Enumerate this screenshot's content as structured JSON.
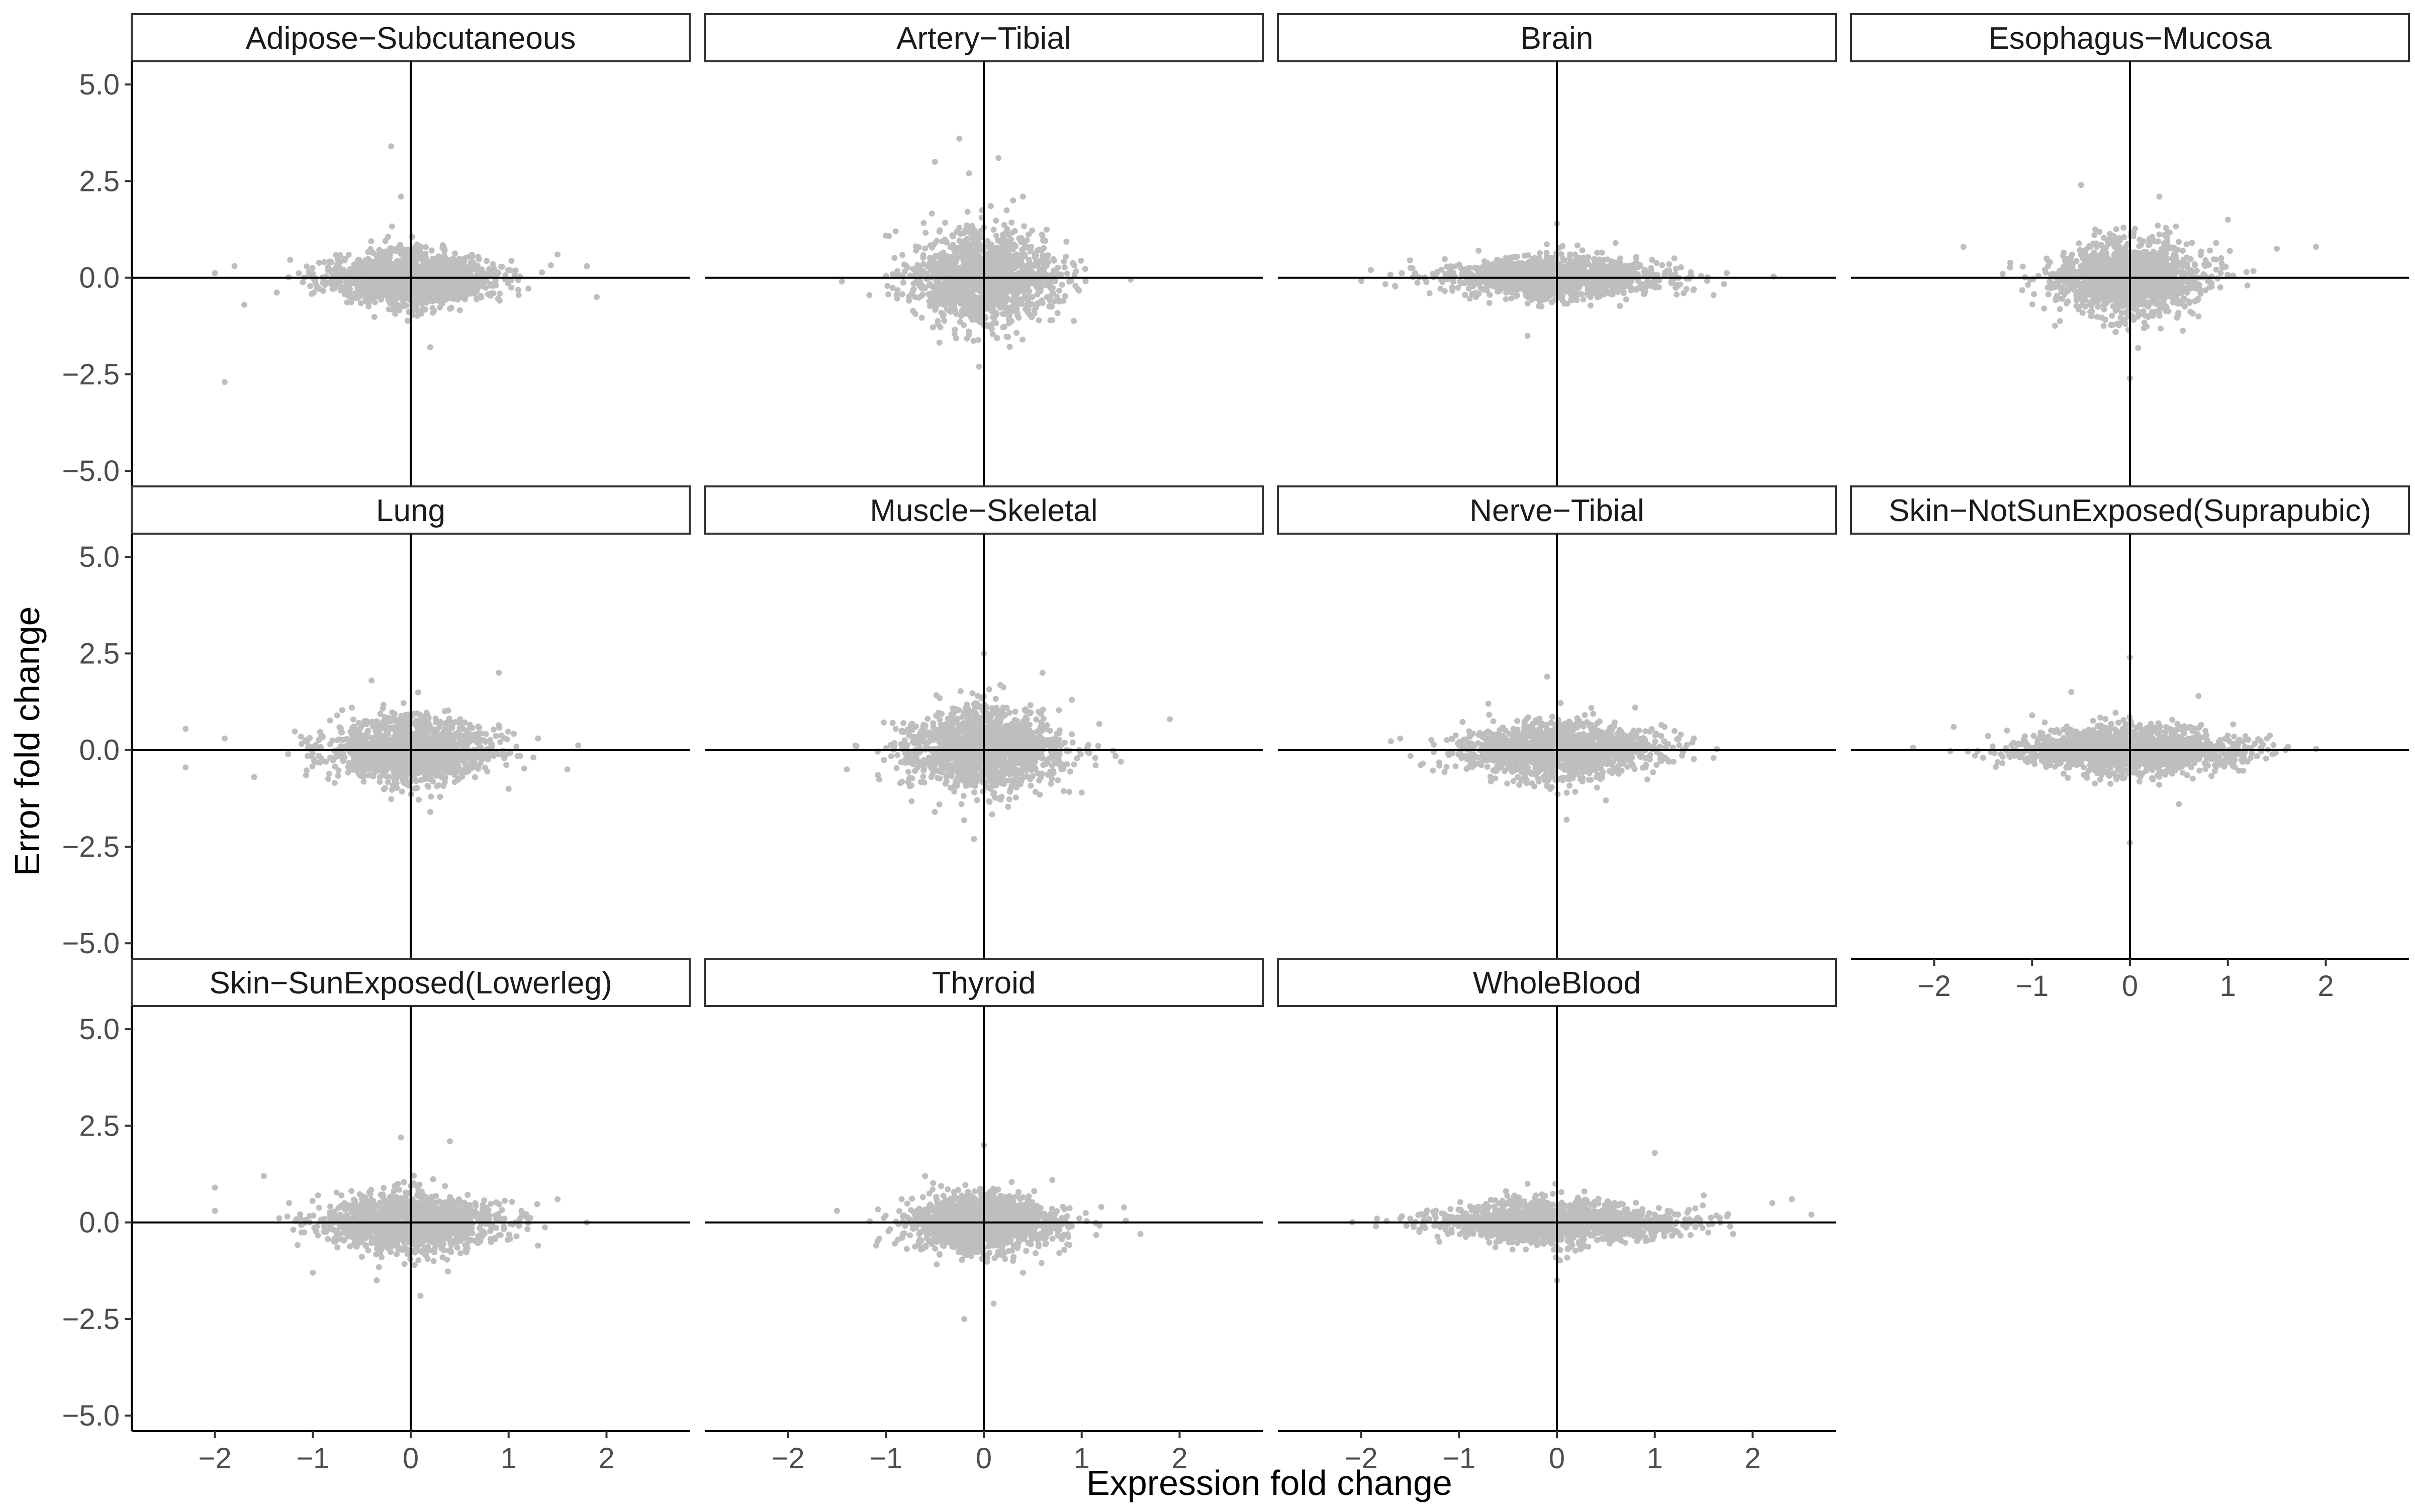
{
  "chart_data": {
    "type": "scatter",
    "xlabel": "Expression fold change",
    "ylabel": "Error fold change",
    "xlim": [
      -2.85,
      2.85
    ],
    "ylim": [
      -5.4,
      5.6
    ],
    "x_ticks": [
      -2,
      -1,
      0,
      1,
      2
    ],
    "y_ticks": [
      -5.0,
      -2.5,
      0.0,
      2.5,
      5.0
    ],
    "x_tick_labels": [
      "−2",
      "−1",
      "0",
      "1",
      "2"
    ],
    "y_tick_labels": [
      "−5.0",
      "−2.5",
      "0.0",
      "2.5",
      "5.0"
    ],
    "reference_lines": {
      "x": 0,
      "y": 0
    },
    "point_color": "#bebebe",
    "line_color": "#000000",
    "grid": false,
    "panels": [
      {
        "name": "Adipose−Subcutaneous",
        "x_spread": 0.42,
        "y_spread": 0.38,
        "points": [
          [
            -2.0,
            0.12
          ],
          [
            -1.8,
            0.3
          ],
          [
            -1.7,
            -0.7
          ],
          [
            -1.9,
            -2.7
          ],
          [
            -0.2,
            3.4
          ],
          [
            1.8,
            0.3
          ],
          [
            1.9,
            -0.5
          ],
          [
            1.5,
            0.6
          ],
          [
            -0.1,
            2.1
          ],
          [
            0.2,
            -1.8
          ]
        ]
      },
      {
        "name": "Artery−Tibial",
        "x_spread": 0.36,
        "y_spread": 0.62,
        "points": [
          [
            -0.25,
            3.6
          ],
          [
            -0.5,
            3.0
          ],
          [
            0.15,
            3.1
          ],
          [
            -0.15,
            2.7
          ],
          [
            -1.45,
            -0.1
          ],
          [
            1.5,
            -0.05
          ],
          [
            -0.05,
            -2.3
          ],
          [
            0.7,
            -1.1
          ],
          [
            -0.9,
            1.2
          ],
          [
            0.4,
            2.1
          ]
        ]
      },
      {
        "name": "Brain",
        "x_spread": 0.55,
        "y_spread": 0.3,
        "points": [
          [
            -1.9,
            0.2
          ],
          [
            -1.5,
            0.45
          ],
          [
            1.4,
            -0.3
          ],
          [
            1.6,
            -0.45
          ],
          [
            0.0,
            1.4
          ],
          [
            -0.3,
            -1.5
          ],
          [
            1.2,
            0.5
          ],
          [
            -1.3,
            -0.4
          ],
          [
            0.6,
            0.9
          ],
          [
            -0.8,
            0.7
          ]
        ]
      },
      {
        "name": "Esophagus−Mucosa",
        "x_spread": 0.38,
        "y_spread": 0.52,
        "points": [
          [
            -1.7,
            0.8
          ],
          [
            1.5,
            0.75
          ],
          [
            1.9,
            0.8
          ],
          [
            0.0,
            -2.6
          ],
          [
            -0.5,
            2.4
          ],
          [
            0.3,
            2.1
          ],
          [
            1.0,
            1.5
          ],
          [
            -1.3,
            0.1
          ],
          [
            0.7,
            -1.0
          ],
          [
            1.2,
            -0.2
          ]
        ]
      },
      {
        "name": "Lung",
        "x_spread": 0.42,
        "y_spread": 0.45,
        "points": [
          [
            -2.3,
            0.55
          ],
          [
            -2.3,
            -0.45
          ],
          [
            1.6,
            -0.5
          ],
          [
            0.9,
            2.0
          ],
          [
            -0.4,
            1.8
          ],
          [
            1.3,
            0.3
          ],
          [
            -1.6,
            -0.7
          ],
          [
            0.2,
            -1.6
          ],
          [
            -1.9,
            0.3
          ],
          [
            1.0,
            -1.0
          ]
        ]
      },
      {
        "name": "Muscle−Skeletal",
        "x_spread": 0.4,
        "y_spread": 0.55,
        "points": [
          [
            1.9,
            0.8
          ],
          [
            1.4,
            -0.3
          ],
          [
            0.0,
            2.5
          ],
          [
            -0.1,
            -2.3
          ],
          [
            -1.3,
            0.1
          ],
          [
            -1.4,
            -0.5
          ],
          [
            0.9,
            1.3
          ],
          [
            -0.5,
            -1.6
          ],
          [
            1.0,
            -1.1
          ],
          [
            0.6,
            2.0
          ]
        ]
      },
      {
        "name": "Nerve−Tibial",
        "x_spread": 0.5,
        "y_spread": 0.4,
        "points": [
          [
            -1.6,
            0.3
          ],
          [
            1.6,
            -0.2
          ],
          [
            -0.1,
            1.9
          ],
          [
            0.1,
            -1.8
          ],
          [
            1.4,
            0.3
          ],
          [
            -1.2,
            -0.4
          ],
          [
            0.8,
            1.1
          ],
          [
            -0.7,
            1.2
          ],
          [
            0.5,
            -1.3
          ],
          [
            1.1,
            0.6
          ]
        ]
      },
      {
        "name": "Skin−NotSunExposed(Suprapubic)",
        "x_spread": 0.55,
        "y_spread": 0.35,
        "points": [
          [
            -1.8,
            0.6
          ],
          [
            1.4,
            0.3
          ],
          [
            0.0,
            2.4
          ],
          [
            0.0,
            -2.4
          ],
          [
            -1.5,
            -0.2
          ],
          [
            1.2,
            -0.3
          ],
          [
            -0.6,
            1.5
          ],
          [
            0.7,
            1.4
          ],
          [
            -1.0,
            0.9
          ],
          [
            0.5,
            -1.4
          ]
        ]
      },
      {
        "name": "Skin−SunExposed(Lowerleg)",
        "x_spread": 0.45,
        "y_spread": 0.4,
        "points": [
          [
            -2.0,
            0.9
          ],
          [
            -2.0,
            0.3
          ],
          [
            1.8,
            0.0
          ],
          [
            1.5,
            0.6
          ],
          [
            0.4,
            2.1
          ],
          [
            -0.1,
            2.2
          ],
          [
            0.1,
            -1.9
          ],
          [
            -1.5,
            1.2
          ],
          [
            1.3,
            -0.6
          ],
          [
            -1.0,
            -1.3
          ]
        ]
      },
      {
        "name": "Thyroid",
        "x_spread": 0.38,
        "y_spread": 0.4,
        "points": [
          [
            -1.5,
            0.3
          ],
          [
            1.6,
            -0.3
          ],
          [
            0.0,
            2.0
          ],
          [
            -0.2,
            -2.5
          ],
          [
            0.1,
            -2.1
          ],
          [
            1.2,
            0.4
          ],
          [
            -1.1,
            -0.6
          ],
          [
            0.7,
            1.1
          ],
          [
            -0.6,
            1.2
          ],
          [
            0.4,
            -1.3
          ]
        ]
      },
      {
        "name": "WholeBlood",
        "x_spread": 0.6,
        "y_spread": 0.3,
        "points": [
          [
            -1.6,
            0.1
          ],
          [
            2.6,
            0.2
          ],
          [
            2.4,
            0.6
          ],
          [
            2.2,
            0.5
          ],
          [
            1.0,
            1.8
          ],
          [
            -0.3,
            1.0
          ],
          [
            0.0,
            -1.5
          ],
          [
            1.8,
            -0.3
          ],
          [
            -1.2,
            -0.5
          ],
          [
            1.5,
            0.7
          ]
        ]
      }
    ]
  }
}
